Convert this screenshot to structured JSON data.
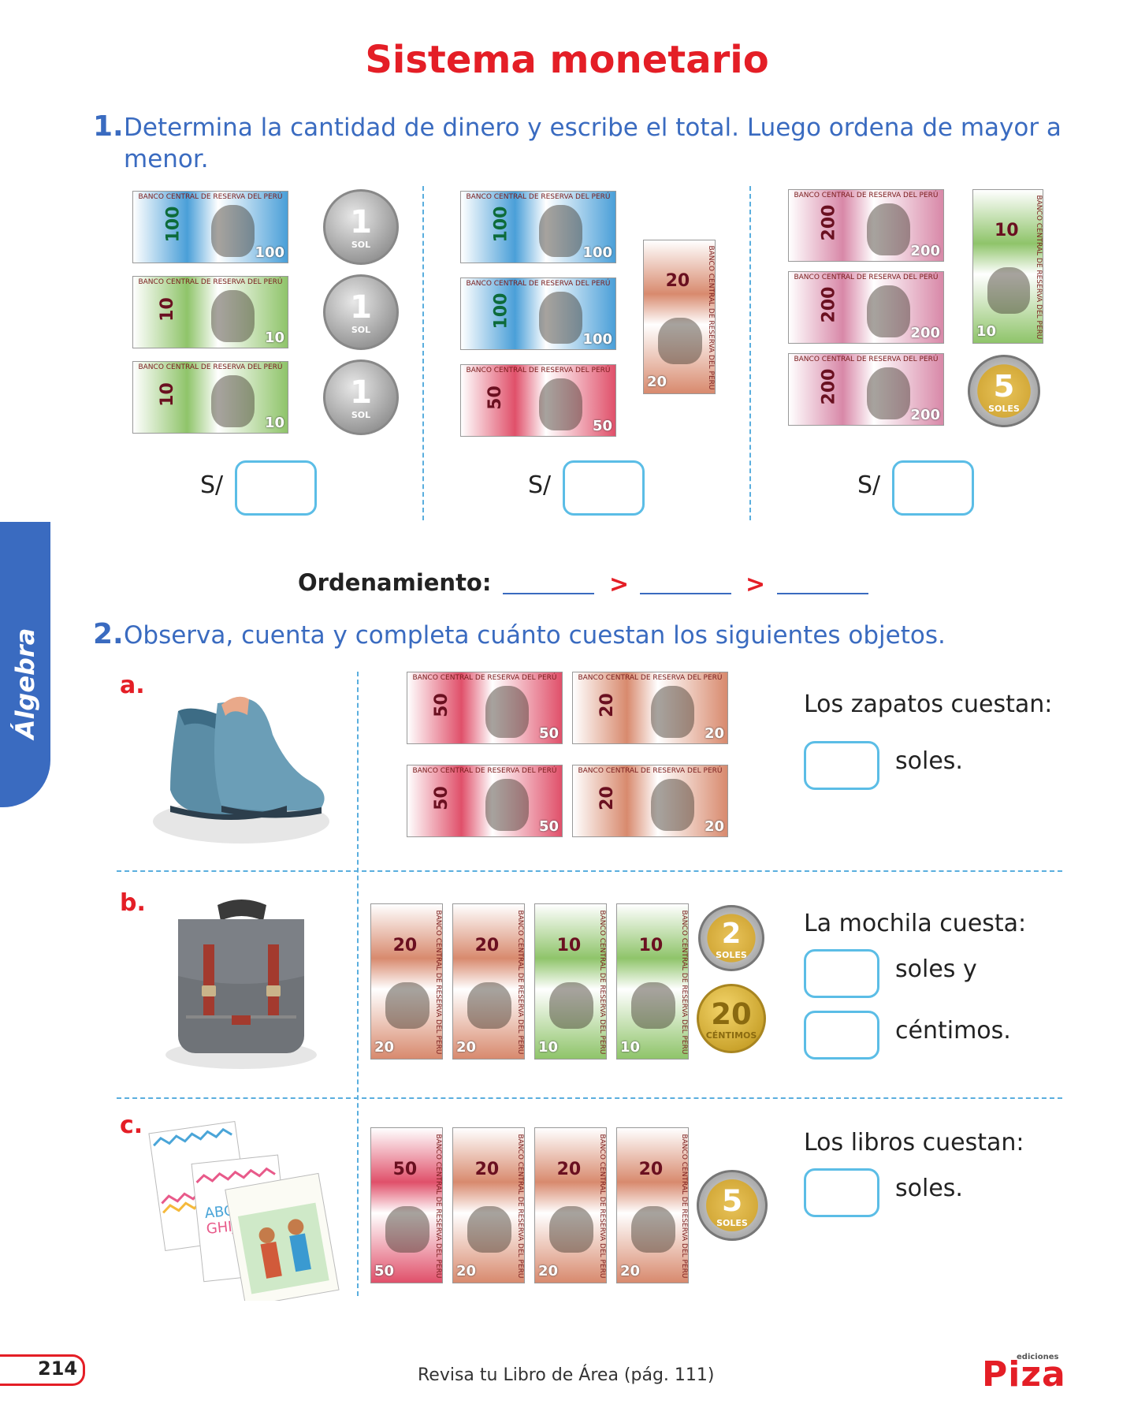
{
  "title": "Sistema monetario",
  "side_tab": "Álgebra",
  "q1": {
    "number": "1.",
    "text": "Determina la cantidad de dinero y escribe el total. Luego ordena de mayor a menor.",
    "currency": "S/",
    "groups": [
      {
        "bills": [
          100,
          10,
          10
        ],
        "coins": [
          1,
          1,
          1
        ]
      },
      {
        "bills": [
          100,
          100,
          50,
          20
        ],
        "coins": []
      },
      {
        "bills": [
          200,
          200,
          200,
          10
        ],
        "coins": [
          5
        ]
      }
    ],
    "ordering_label": "Ordenamiento:",
    "gt": ">"
  },
  "q2": {
    "number": "2.",
    "text": "Observa, cuenta y completa cuánto cuestan los siguientes objetos.",
    "items": [
      {
        "letter": "a.",
        "object": "shoes-image",
        "bills": [
          50,
          20,
          50,
          20
        ],
        "prompt": "Los zapatos cuestan:",
        "unit1": "soles."
      },
      {
        "letter": "b.",
        "object": "backpack-image",
        "bills": [
          20,
          20,
          10,
          10
        ],
        "prompt": "La mochila cuesta:",
        "unit1": "soles y",
        "unit2": "céntimos.",
        "coin1_value": "2",
        "coin1_unit": "SOLES",
        "coin2_value": "20",
        "coin2_unit": "CÉNTIMOS"
      },
      {
        "letter": "c.",
        "object": "books-image",
        "bills": [
          50,
          20,
          20,
          20
        ],
        "prompt": "Los libros cuestan:",
        "unit1": "soles.",
        "coin1_value": "5",
        "coin1_unit": "SOLES"
      }
    ]
  },
  "bank_text": "BANCO CENTRAL DE RESERVA DEL PERÚ",
  "coin_texts": {
    "sol": "SOL",
    "one": "1",
    "five": "5",
    "soles": "SOLES"
  },
  "footer": {
    "page_number": "214",
    "note": "Revisa tu Libro de Área (pág. 111)",
    "brand": "Piza",
    "brand_small": "ediciones"
  },
  "colors": {
    "title": "#e41e26",
    "question": "#3a6bc0",
    "box": "#5bbde6",
    "b100": "#4a9fd8",
    "b10": "#8fc46a",
    "b50": "#e0506a",
    "b20": "#d88a6e",
    "b200": "#d888a8"
  }
}
